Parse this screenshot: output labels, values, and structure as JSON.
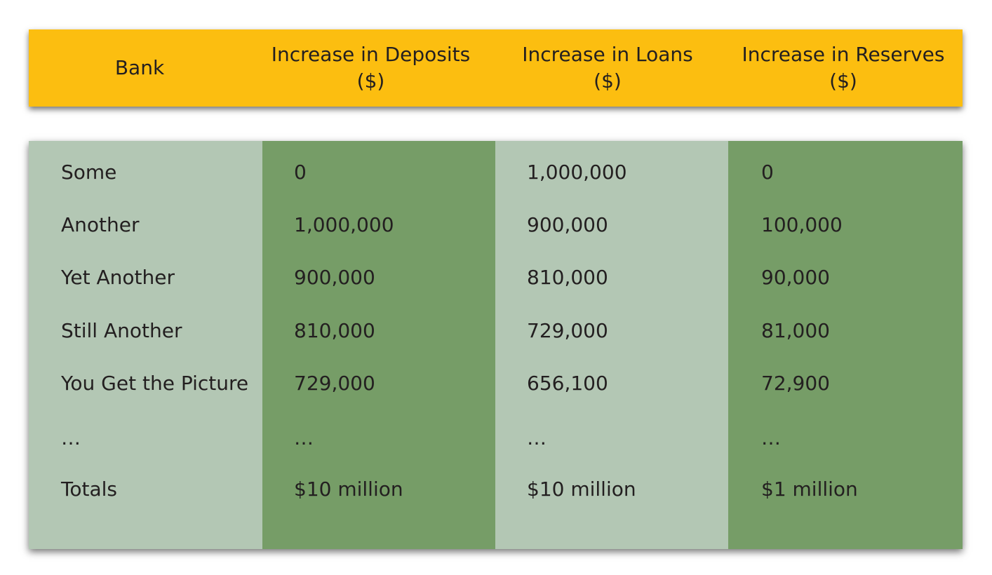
{
  "header": {
    "col0": {
      "line1": "Bank"
    },
    "col1": {
      "line1": "Increase in Deposits",
      "line2": "($)"
    },
    "col2": {
      "line1": "Increase in Loans",
      "line2": "($)"
    },
    "col3": {
      "line1": "Increase in Reserves",
      "line2": "($)"
    }
  },
  "rows": [
    [
      "Some",
      "0",
      "1,000,000",
      "0"
    ],
    [
      "Another",
      "1,000,000",
      "900,000",
      "100,000"
    ],
    [
      "Yet Another",
      "900,000",
      "810,000",
      "90,000"
    ],
    [
      "Still Another",
      "810,000",
      "729,000",
      "81,000"
    ],
    [
      "You Get the Picture",
      "729,000",
      "656,100",
      "72,900"
    ],
    [
      "…",
      "…",
      "…",
      "…"
    ],
    [
      "Totals",
      "$10 million",
      "$10 million",
      "$1 million"
    ]
  ],
  "colors": {
    "header_bg": "#fcbe10",
    "light_green": "#b3c7b4",
    "dark_green": "#769d67"
  }
}
